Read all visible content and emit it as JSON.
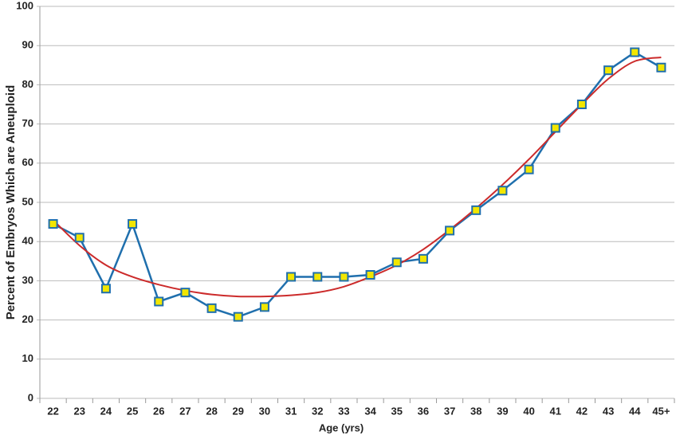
{
  "chart_data": {
    "type": "line",
    "x_label": "Age (yrs)",
    "y_label": "Percent of Embryos Which are Aneuploid",
    "categories": [
      "22",
      "23",
      "24",
      "25",
      "26",
      "27",
      "28",
      "29",
      "30",
      "31",
      "32",
      "33",
      "34",
      "35",
      "36",
      "37",
      "38",
      "39",
      "40",
      "41",
      "42",
      "43",
      "44",
      "45+"
    ],
    "series": [
      {
        "color": "#1f6fad",
        "marker_fill": "#f2e600",
        "markers": true,
        "smooth": false,
        "values": [
          44.5,
          41,
          28,
          44.5,
          24.7,
          27,
          23,
          20.8,
          23.3,
          31,
          31,
          31,
          31.5,
          34.7,
          35.6,
          42.8,
          48,
          53,
          58.4,
          69,
          75,
          83.7,
          88.3,
          84.4
        ]
      },
      {
        "color": "#cc2b2b",
        "markers": false,
        "smooth": true,
        "values": [
          45.5,
          39,
          34,
          31,
          29,
          27.5,
          26.5,
          26,
          26,
          26.3,
          27,
          28.5,
          31,
          34,
          38,
          43,
          48.5,
          54.5,
          61,
          68,
          75,
          81.5,
          86,
          87
        ]
      }
    ],
    "ylim": [
      0,
      100
    ],
    "yticks": [
      0,
      10,
      20,
      30,
      40,
      50,
      60,
      70,
      80,
      90,
      100
    ],
    "grid": true
  }
}
